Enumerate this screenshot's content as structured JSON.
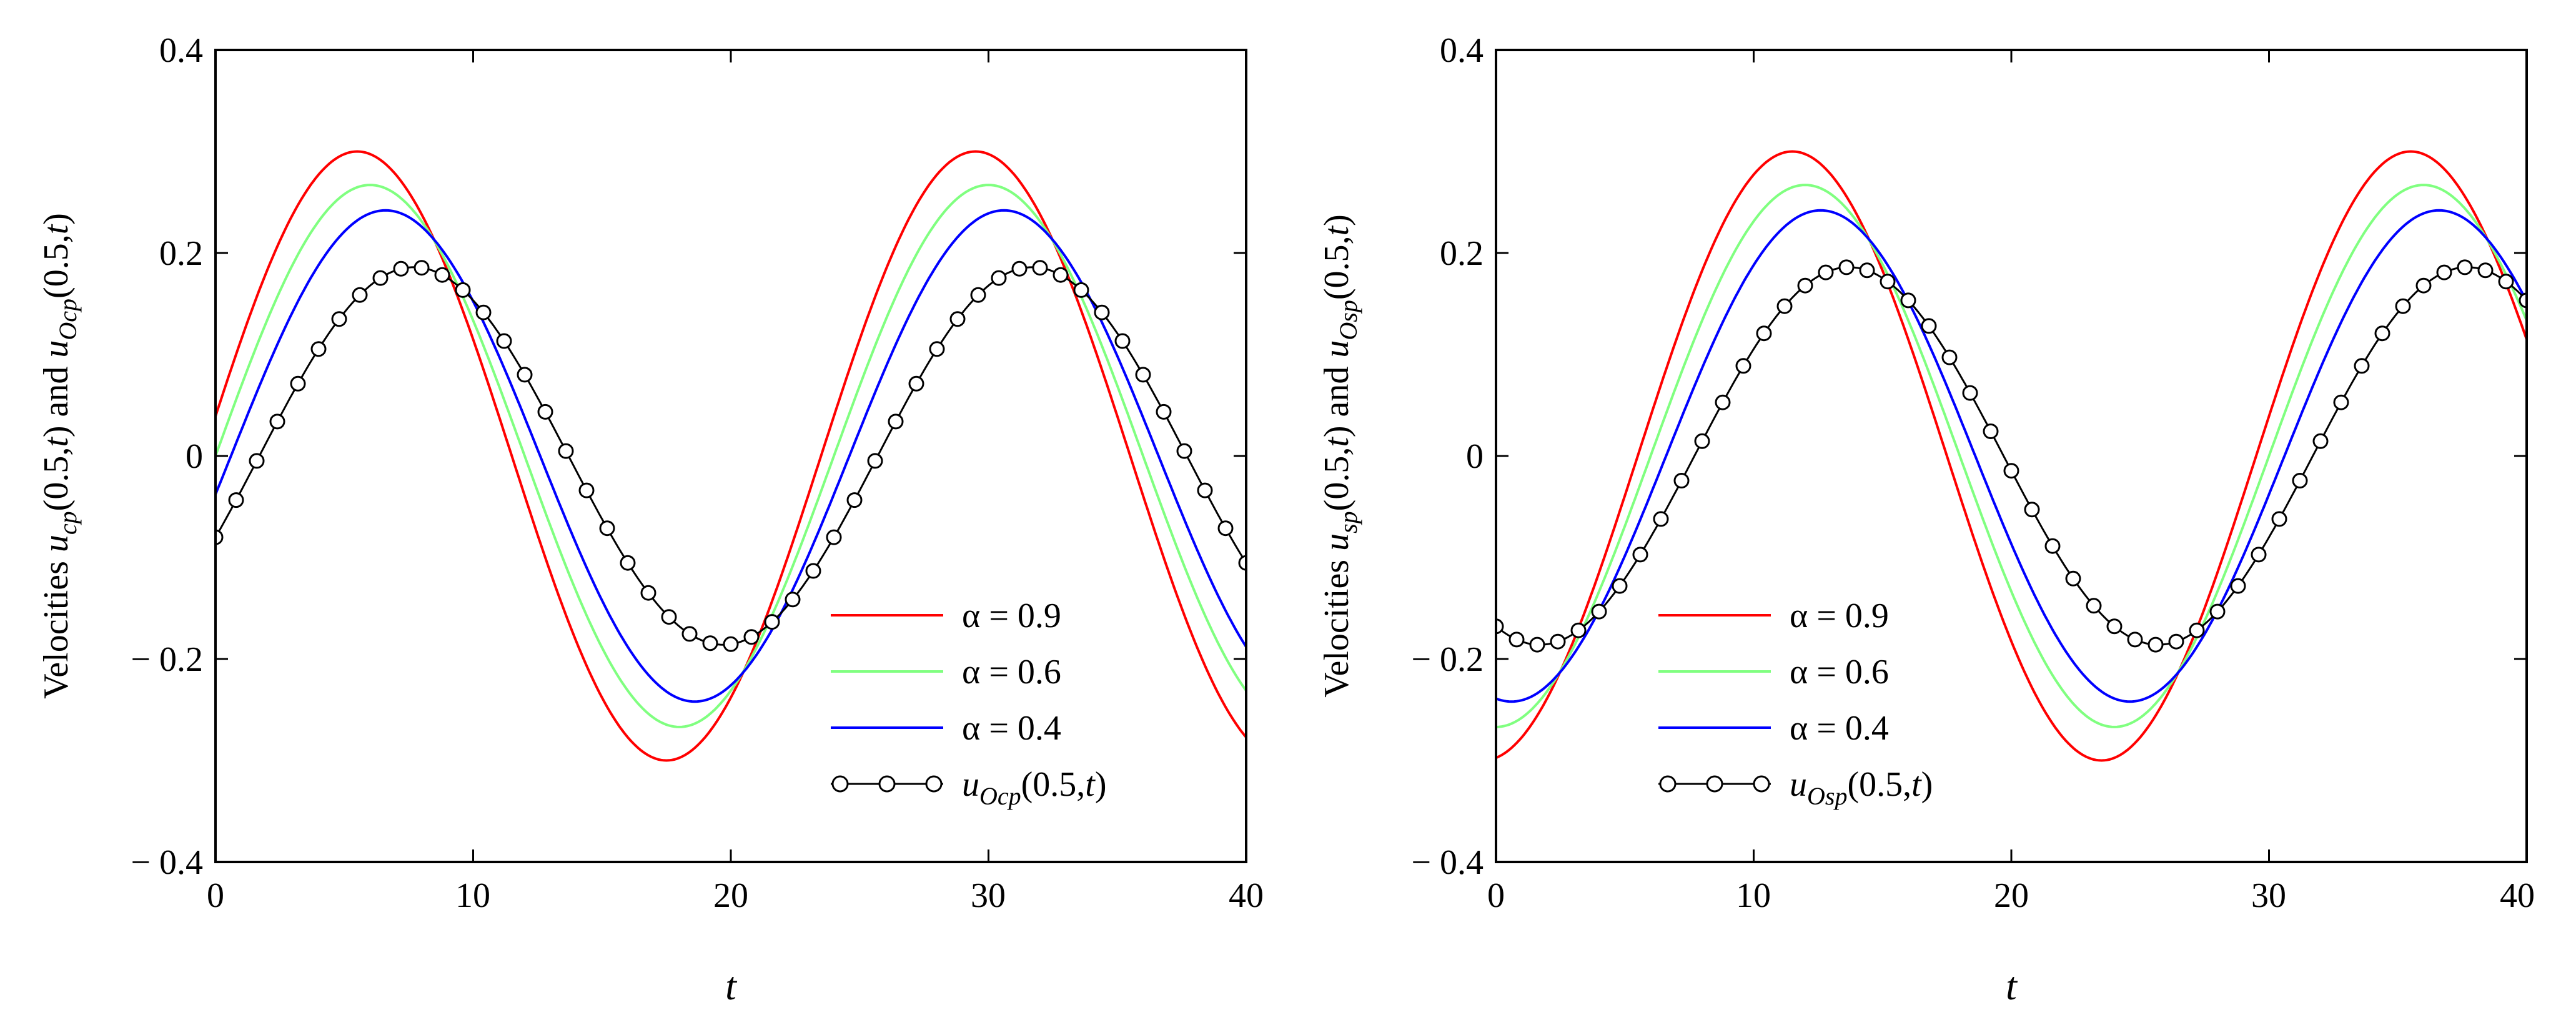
{
  "chart_data": [
    {
      "type": "line",
      "xlabel": "t",
      "ylabel": {
        "pre": "Velocities ",
        "u1": "u",
        "s1": "cp",
        "a1": "(0.5,",
        "t1": "t",
        "c1": ") and ",
        "u2": "u",
        "s2": "Ocp",
        "a2": "(0.5,",
        "t2": "t",
        "c2": ")"
      },
      "xlim": [
        0,
        40
      ],
      "ylim": [
        -0.4,
        0.4
      ],
      "xticks": [
        "0",
        "10",
        "20",
        "30",
        "40"
      ],
      "yticks": [
        "0.4",
        "0.2",
        "0",
        "− 0.2",
        "− 0.4"
      ],
      "grid": false,
      "legend_position": "bottom-right",
      "x": [
        0,
        2,
        4,
        6,
        8,
        10,
        12,
        14,
        16,
        18,
        20,
        22,
        24,
        26,
        28,
        30,
        32,
        34,
        36,
        38,
        40
      ],
      "series": [
        {
          "name": "α = 0.9",
          "color": "#ff0000",
          "marker": "none",
          "amplitude": 0.3,
          "period": 24,
          "peak_t": 5.5
        },
        {
          "name": "α = 0.6",
          "color": "#80ff80",
          "marker": "none",
          "amplitude": 0.267,
          "period": 24,
          "peak_t": 6.0
        },
        {
          "name": "α = 0.4",
          "color": "#0000ff",
          "marker": "none",
          "amplitude": 0.242,
          "period": 24,
          "peak_t": 6.6
        },
        {
          "name": {
            "u": "u",
            "sub": "Ocp",
            "arg": "(0.5,",
            "t": "t",
            "close": ")"
          },
          "color": "#000000",
          "marker": "open-circle",
          "amplitude": 0.186,
          "period": 24,
          "peak_t": 7.7,
          "marker_step": 0.8
        }
      ],
      "values": {
        "alpha_0.9": [
          0.024,
          0.195,
          0.291,
          0.286,
          0.183,
          0.016,
          -0.158,
          -0.276,
          -0.296,
          -0.21,
          -0.051,
          0.126,
          0.259,
          0.3,
          0.234,
          0.085,
          -0.092,
          -0.239,
          -0.3,
          -0.257,
          -0.125
        ],
        "alpha_0.6": [
          -0.035,
          0.124,
          0.235,
          0.265,
          0.205,
          0.073,
          -0.088,
          -0.215,
          -0.267,
          -0.229,
          -0.112,
          0.048,
          0.191,
          0.266,
          0.245,
          0.136,
          -0.022,
          -0.17,
          -0.259,
          -0.257,
          -0.16
        ],
        "alpha_0.4": [
          -0.075,
          0.077,
          0.195,
          0.241,
          0.205,
          0.097,
          -0.051,
          -0.183,
          -0.242,
          -0.216,
          -0.117,
          0.025,
          0.163,
          0.237,
          0.223,
          0.135,
          -0.002,
          -0.142,
          -0.23,
          -0.233,
          -0.154
        ],
        "u_Ocp": [
          -0.074,
          0.02,
          0.113,
          0.174,
          0.182,
          0.139,
          0.055,
          -0.043,
          -0.131,
          -0.178,
          -0.17,
          -0.118,
          -0.032,
          0.065,
          0.148,
          0.186,
          0.167,
          0.1,
          0.01,
          -0.084,
          -0.158
        ]
      }
    },
    {
      "type": "line",
      "xlabel": "t",
      "ylabel": {
        "pre": "Velocities ",
        "u1": "u",
        "s1": "sp",
        "a1": "(0.5,",
        "t1": "t",
        "c1": ") and ",
        "u2": "u",
        "s2": "Osp",
        "a2": "(0.5,",
        "t2": "t",
        "c2": ")"
      },
      "xlim": [
        0,
        40
      ],
      "ylim": [
        -0.4,
        0.4
      ],
      "xticks": [
        "0",
        "10",
        "20",
        "30",
        "40"
      ],
      "yticks": [
        "0.4",
        "0.2",
        "0",
        "− 0.2",
        "− 0.4"
      ],
      "grid": false,
      "legend_position": "bottom-right",
      "x": [
        0,
        2,
        4,
        6,
        8,
        10,
        12,
        14,
        16,
        18,
        20,
        22,
        24,
        26,
        28,
        30,
        32,
        34,
        36,
        38,
        40
      ],
      "series": [
        {
          "name": "α = 0.9",
          "color": "#ff0000",
          "marker": "none",
          "amplitude": 0.3,
          "period": 24,
          "peak_t": 11.5
        },
        {
          "name": "α = 0.6",
          "color": "#80ff80",
          "marker": "none",
          "amplitude": 0.267,
          "period": 24,
          "peak_t": 12.0
        },
        {
          "name": "α = 0.4",
          "color": "#0000ff",
          "marker": "none",
          "amplitude": 0.242,
          "period": 24,
          "peak_t": 12.6
        },
        {
          "name": {
            "u": "u",
            "sub": "Osp",
            "arg": "(0.5,",
            "t": "t",
            "close": ")"
          },
          "color": "#000000",
          "marker": "open-circle",
          "amplitude": 0.186,
          "period": 24,
          "peak_t": 13.7,
          "marker_step": 0.8
        }
      ],
      "values": {
        "alpha_0.9": [
          -0.29,
          -0.234,
          -0.092,
          0.076,
          0.218,
          0.296,
          0.29,
          0.203,
          0.058,
          -0.109,
          -0.246,
          -0.3,
          -0.27,
          -0.156,
          0.006,
          0.165,
          0.277,
          0.296,
          0.217,
          0.073,
          -0.092
        ],
        "alpha_0.6": [
          -0.267,
          -0.245,
          -0.144,
          0.007,
          0.153,
          0.248,
          0.265,
          0.2,
          0.073,
          -0.078,
          -0.207,
          -0.266,
          -0.242,
          -0.14,
          0.007,
          0.153,
          0.248,
          0.265,
          0.2,
          0.073,
          -0.078
        ],
        "alpha_0.4": [
          -0.242,
          -0.23,
          -0.147,
          -0.012,
          0.124,
          0.219,
          0.242,
          0.19,
          0.079,
          -0.058,
          -0.179,
          -0.24,
          -0.221,
          -0.132,
          0.005,
          0.139,
          0.226,
          0.24,
          0.175,
          0.057,
          -0.081
        ],
        "u_Ocp": [
          -0.175,
          -0.182,
          -0.134,
          -0.045,
          0.056,
          0.139,
          0.183,
          0.172,
          0.11,
          0.014,
          -0.085,
          -0.16,
          -0.185,
          -0.152,
          -0.075,
          0.023,
          0.117,
          0.176,
          0.181,
          0.128,
          0.04
        ]
      }
    }
  ]
}
